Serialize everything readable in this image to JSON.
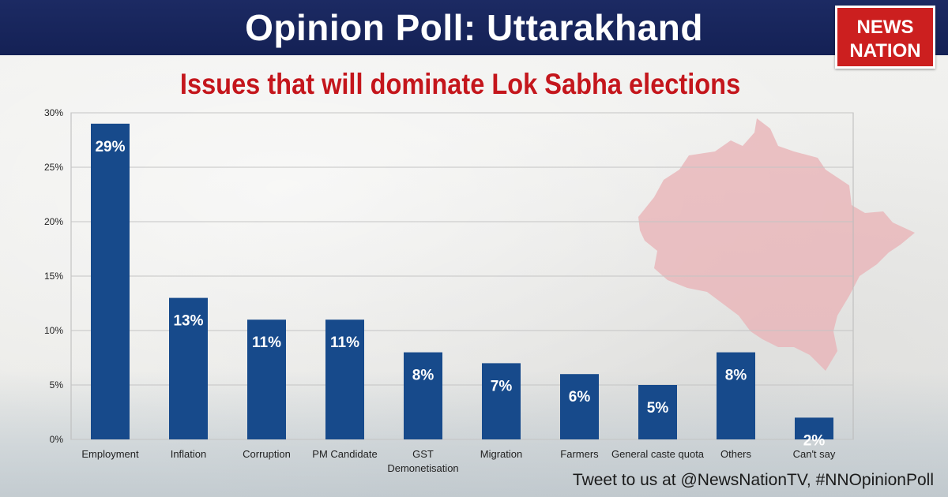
{
  "header": {
    "title": "Opinion Poll: Uttarakhand",
    "logo_line1": "NEWS",
    "logo_line2": "NATION"
  },
  "subtitle": "Issues that will dominate Lok Sabha elections",
  "footer": "Tweet to us at @NewsNationTV, #NNOpinionPoll",
  "colors": {
    "header_bg": "#1c2a63",
    "bar": "#174a8b",
    "subtitle": "#c4161c",
    "logo_bg": "#cc1f1f",
    "map": "#e8b4b8"
  },
  "chart_data": {
    "type": "bar",
    "title": "Issues that will dominate Lok Sabha elections",
    "xlabel": "",
    "ylabel": "",
    "categories": [
      "Employment",
      "Inflation",
      "Corruption",
      "PM Candidate",
      "GST\nDemonetisation",
      "Migration",
      "Farmers",
      "General caste quota",
      "Others",
      "Can't say"
    ],
    "values": [
      29,
      13,
      11,
      11,
      8,
      7,
      6,
      5,
      8,
      2
    ],
    "value_labels": [
      "29%",
      "13%",
      "11%",
      "11%",
      "8%",
      "7%",
      "6%",
      "5%",
      "8%",
      "2%"
    ],
    "ylim": [
      0,
      30
    ],
    "yticks": [
      0,
      5,
      10,
      15,
      20,
      25,
      30
    ],
    "ytick_labels": [
      "0%",
      "5%",
      "10%",
      "15%",
      "20%",
      "25%",
      "30%"
    ],
    "grid": true,
    "legend": "none"
  }
}
